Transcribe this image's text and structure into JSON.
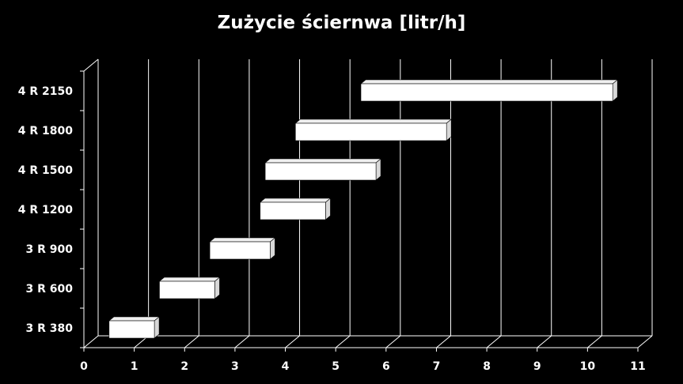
{
  "chart_data": {
    "type": "bar",
    "orientation": "horizontal",
    "style": "3d-floating-range",
    "title": "Zużycie ściernwa [litr/h]",
    "xlabel": "",
    "ylabel": "",
    "categories": [
      "3 R 380",
      "3 R 600",
      "3 R 900",
      "4 R 1200",
      "4 R 1500",
      "4 R 1800",
      "4 R 2150"
    ],
    "series": [
      {
        "ranges": [
          [
            0.5,
            1.4
          ],
          [
            1.5,
            2.6
          ],
          [
            2.5,
            3.7
          ],
          [
            3.5,
            4.8
          ],
          [
            3.6,
            5.8
          ],
          [
            4.2,
            7.2
          ],
          [
            5.5,
            10.5
          ]
        ]
      }
    ],
    "xlim": [
      0,
      11
    ],
    "xticks": [
      0,
      1,
      2,
      3,
      4,
      5,
      6,
      7,
      8,
      9,
      10,
      11
    ],
    "grid": true,
    "legend": "none",
    "colors": {
      "background": "#000000",
      "bar": "#ffffff",
      "grid": "#ffffff",
      "text": "#ffffff"
    }
  }
}
